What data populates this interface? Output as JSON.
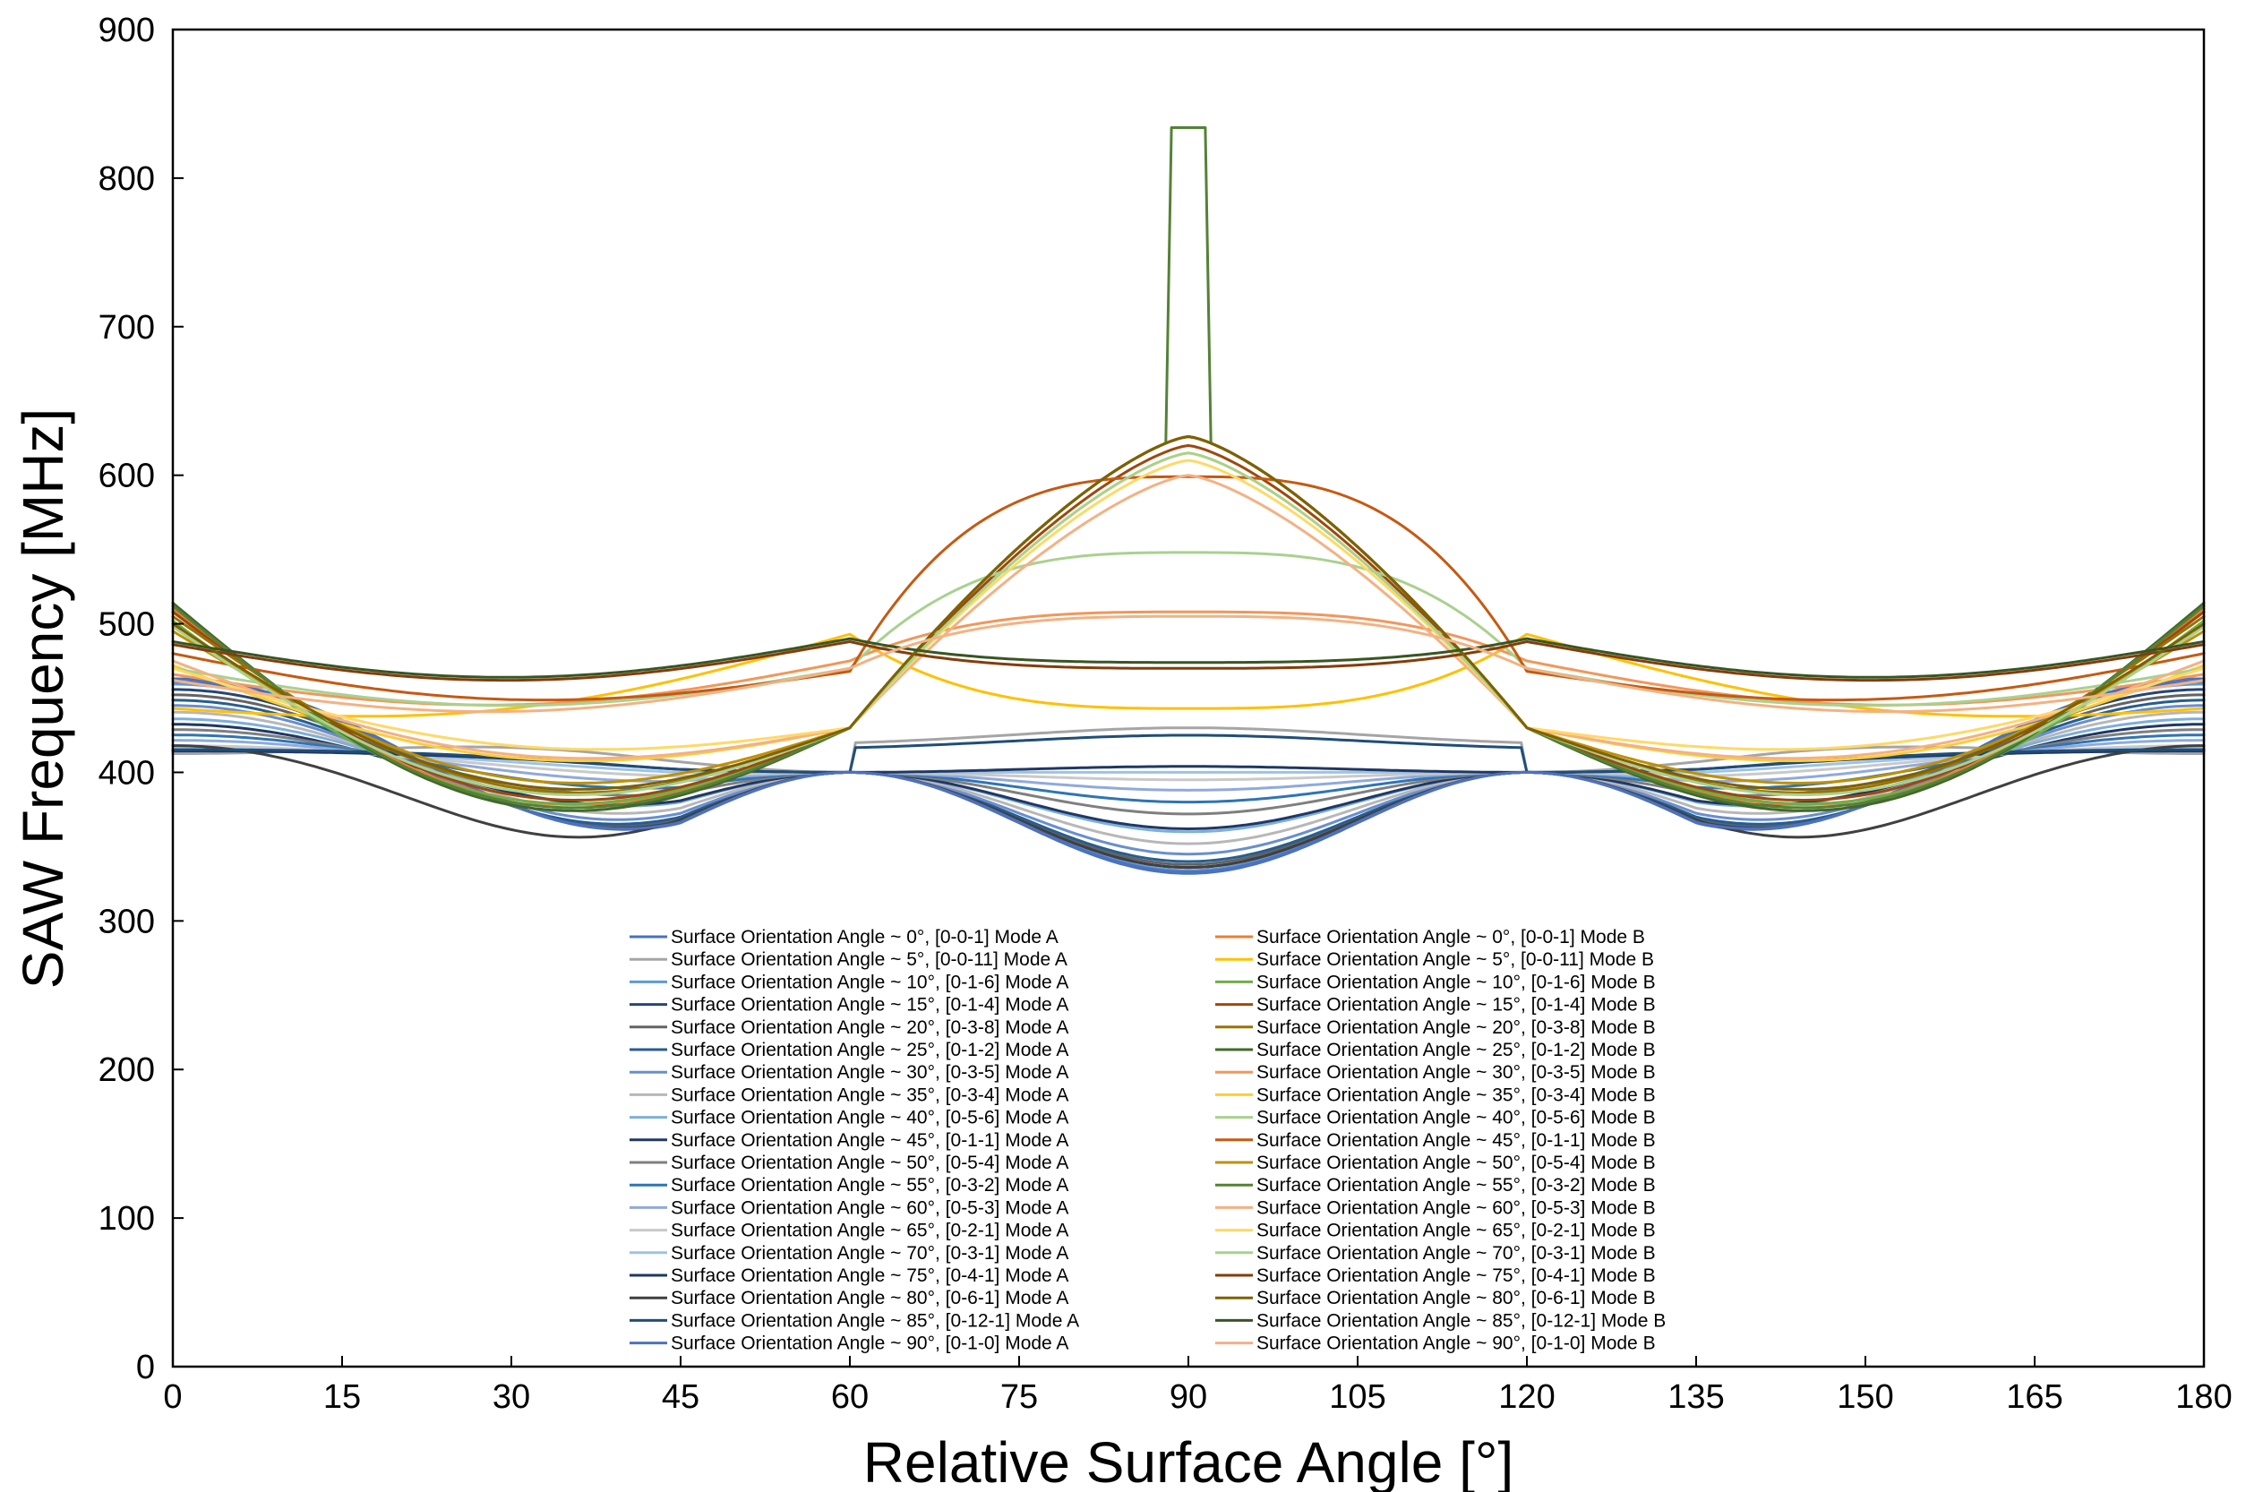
{
  "chart_data": {
    "type": "line",
    "title": "",
    "xlabel": "Relative Surface Angle [°]",
    "ylabel": "SAW Frequency [MHz]",
    "xlim": [
      0,
      180
    ],
    "ylim": [
      0,
      900
    ],
    "xticks": [
      "0",
      "15",
      "30",
      "45",
      "60",
      "75",
      "90",
      "105",
      "120",
      "135",
      "150",
      "165",
      "180"
    ],
    "yticks": [
      "0",
      "100",
      "200",
      "300",
      "400",
      "500",
      "600",
      "700",
      "800",
      "900"
    ],
    "grid": false,
    "legend_position": "lower-center, two columns",
    "series": [
      {
        "name": "Surface Orientation Angle ~ 0°, [0-0-1] Mode A",
        "mode": "A",
        "color": "#4472c4",
        "low": 332,
        "high": 470,
        "node": 400,
        "shoulder": 0.55
      },
      {
        "name": "Surface Orientation Angle ~ 5°, [0-0-11] Mode A",
        "mode": "A",
        "color": "#a5a5a5",
        "low": 414,
        "high": 414,
        "node": 400,
        "shoulder": 0.4,
        "mid": 430
      },
      {
        "name": "Surface Orientation Angle ~ 10°, [0-1-6] Mode A",
        "mode": "A",
        "color": "#5b9bd5",
        "low": 334,
        "high": 466,
        "node": 400,
        "shoulder": 0.55
      },
      {
        "name": "Surface Orientation Angle ~ 15°, [0-1-4] Mode A",
        "mode": "A",
        "color": "#264478",
        "low": 336,
        "high": 462,
        "node": 400,
        "shoulder": 0.55
      },
      {
        "name": "Surface Orientation Angle ~ 20°, [0-3-8] Mode A",
        "mode": "A",
        "color": "#636363",
        "low": 338,
        "high": 458,
        "node": 400,
        "shoulder": 0.55
      },
      {
        "name": "Surface Orientation Angle ~ 25°, [0-1-2] Mode A",
        "mode": "A",
        "color": "#255e91",
        "low": 340,
        "high": 454,
        "node": 400,
        "shoulder": 0.55
      },
      {
        "name": "Surface Orientation Angle ~ 30°, [0-3-5] Mode A",
        "mode": "A",
        "color": "#698ed0",
        "low": 345,
        "high": 450,
        "node": 400,
        "shoulder": 0.55
      },
      {
        "name": "Surface Orientation Angle ~ 35°, [0-3-4] Mode A",
        "mode": "A",
        "color": "#b7b7b7",
        "low": 352,
        "high": 445,
        "node": 400,
        "shoulder": 0.55
      },
      {
        "name": "Surface Orientation Angle ~ 40°, [0-5-6] Mode A",
        "mode": "A",
        "color": "#7cafdd",
        "low": 360,
        "high": 440,
        "node": 400,
        "shoulder": 0.55
      },
      {
        "name": "Surface Orientation Angle ~ 45°, [0-1-1] Mode A",
        "mode": "A",
        "color": "#203864",
        "low": 362,
        "high": 436,
        "node": 400,
        "shoulder": 0.55
      },
      {
        "name": "Surface Orientation Angle ~ 50°, [0-5-4] Mode A",
        "mode": "A",
        "color": "#7f7f7f",
        "low": 372,
        "high": 432,
        "node": 400,
        "shoulder": 0.55
      },
      {
        "name": "Surface Orientation Angle ~ 55°, [0-3-2] Mode A",
        "mode": "A",
        "color": "#2e75b6",
        "low": 380,
        "high": 428,
        "node": 400,
        "shoulder": 0.55
      },
      {
        "name": "Surface Orientation Angle ~ 60°, [0-5-3] Mode A",
        "mode": "A",
        "color": "#8faadc",
        "low": 388,
        "high": 424,
        "node": 400,
        "shoulder": 0.55
      },
      {
        "name": "Surface Orientation Angle ~ 65°, [0-2-1] Mode A",
        "mode": "A",
        "color": "#c9c9c9",
        "low": 395,
        "high": 420,
        "node": 400,
        "shoulder": 0.55
      },
      {
        "name": "Surface Orientation Angle ~ 70°, [0-3-1] Mode A",
        "mode": "A",
        "color": "#9dc3e6",
        "low": 400,
        "high": 418,
        "node": 400,
        "shoulder": 0.55
      },
      {
        "name": "Surface Orientation Angle ~ 75°, [0-4-1] Mode A",
        "mode": "A",
        "color": "#1f3864",
        "low": 404,
        "high": 416,
        "node": 400,
        "shoulder": 0.55
      },
      {
        "name": "Surface Orientation Angle ~ 80°, [0-6-1] Mode A",
        "mode": "A",
        "color": "#404040",
        "low": 336,
        "high": 420,
        "node": 400,
        "shoulder": 0.55
      },
      {
        "name": "Surface Orientation Angle ~ 85°, [0-12-1] Mode A",
        "mode": "A",
        "color": "#1f4e79",
        "low": 404,
        "high": 417,
        "node": 400,
        "shoulder": 0.4,
        "mid": 425
      },
      {
        "name": "Surface Orientation Angle ~ 90°, [0-1-0] Mode A",
        "mode": "A",
        "color": "#4f71be",
        "low": 333,
        "high": 468,
        "node": 400,
        "shoulder": 0.55
      },
      {
        "name": "Surface Orientation Angle ~ 0°, [0-0-1] Mode B",
        "mode": "B",
        "color": "#ed7d31",
        "peak": 626,
        "edge": 510,
        "valley": 382,
        "ridge": 486,
        "shape": "peak"
      },
      {
        "name": "Surface Orientation Angle ~ 5°, [0-0-11] Mode B",
        "mode": "B",
        "color": "#ffc000",
        "peak": 443,
        "edge": 443,
        "valley": 470,
        "ridge": 493,
        "shape": "plateau"
      },
      {
        "name": "Surface Orientation Angle ~ 10°, [0-1-6] Mode B",
        "mode": "B",
        "color": "#70ad47",
        "peak": 626,
        "edge": 502,
        "valley": 382,
        "ridge": 486,
        "shape": "peak"
      },
      {
        "name": "Surface Orientation Angle ~ 15°, [0-1-4] Mode B",
        "mode": "B",
        "color": "#9e480e",
        "peak": 620,
        "edge": 508,
        "valley": 385,
        "ridge": 480,
        "shape": "peak"
      },
      {
        "name": "Surface Orientation Angle ~ 20°, [0-3-8] Mode B",
        "mode": "B",
        "color": "#997300",
        "peak": 626,
        "edge": 505,
        "valley": 390,
        "ridge": 476,
        "shape": "peak"
      },
      {
        "name": "Surface Orientation Angle ~ 25°, [0-1-2] Mode B",
        "mode": "B",
        "color": "#43682b",
        "peak": 626,
        "edge": 514,
        "valley": 378,
        "ridge": 488,
        "shape": "peak"
      },
      {
        "name": "Surface Orientation Angle ~ 30°, [0-3-5] Mode B",
        "mode": "B",
        "color": "#f1975a",
        "peak": 508,
        "edge": 466,
        "valley": 436,
        "ridge": 475,
        "shape": "plateau"
      },
      {
        "name": "Surface Orientation Angle ~ 35°, [0-3-4] Mode B",
        "mode": "B",
        "color": "#ffcd33",
        "peak": 615,
        "edge": 472,
        "valley": 410,
        "ridge": 470,
        "shape": "peak"
      },
      {
        "name": "Surface Orientation Angle ~ 40°, [0-5-6] Mode B",
        "mode": "B",
        "color": "#a9d18e",
        "peak": 548,
        "edge": 470,
        "valley": 425,
        "ridge": 470,
        "shape": "plateau"
      },
      {
        "name": "Surface Orientation Angle ~ 45°, [0-1-1] Mode B",
        "mode": "B",
        "color": "#c55a11",
        "peak": 599,
        "edge": 480,
        "valley": 400,
        "ridge": 468,
        "shape": "plateau"
      },
      {
        "name": "Surface Orientation Angle ~ 50°, [0-5-4] Mode B",
        "mode": "B",
        "color": "#bf9000",
        "peak": 626,
        "edge": 495,
        "valley": 396,
        "ridge": 472,
        "shape": "peak"
      },
      {
        "name": "Surface Orientation Angle ~ 55°, [0-3-2] Mode B",
        "mode": "B",
        "color": "#548235",
        "peak": 834,
        "edge": 512,
        "valley": 380,
        "ridge": 484,
        "shape": "spike"
      },
      {
        "name": "Surface Orientation Angle ~ 60°, [0-5-3] Mode B",
        "mode": "B",
        "color": "#f4b183",
        "peak": 600,
        "edge": 475,
        "valley": 412,
        "ridge": 462,
        "shape": "peak"
      },
      {
        "name": "Surface Orientation Angle ~ 65°, [0-2-1] Mode B",
        "mode": "B",
        "color": "#ffd966",
        "peak": 610,
        "edge": 470,
        "valley": 418,
        "ridge": 458,
        "shape": "peak"
      },
      {
        "name": "Surface Orientation Angle ~ 70°, [0-3-1] Mode B",
        "mode": "B",
        "color": "#a9d18e",
        "peak": 615,
        "edge": 498,
        "valley": 388,
        "ridge": 470,
        "shape": "peak"
      },
      {
        "name": "Surface Orientation Angle ~ 75°, [0-4-1] Mode B",
        "mode": "B",
        "color": "#843c0c",
        "peak": 470,
        "edge": 486,
        "valley": 450,
        "ridge": 488,
        "shape": "plateau"
      },
      {
        "name": "Surface Orientation Angle ~ 80°, [0-6-1] Mode B",
        "mode": "B",
        "color": "#7f6000",
        "peak": 626,
        "edge": 500,
        "valley": 392,
        "ridge": 476,
        "shape": "peak"
      },
      {
        "name": "Surface Orientation Angle ~ 85°, [0-12-1] Mode B",
        "mode": "B",
        "color": "#375623",
        "peak": 474,
        "edge": 488,
        "valley": 452,
        "ridge": 490,
        "shape": "plateau"
      },
      {
        "name": "Surface Orientation Angle ~ 90°, [0-1-0] Mode B",
        "mode": "B",
        "color": "#f4b183",
        "peak": 505,
        "edge": 462,
        "valley": 440,
        "ridge": 470,
        "shape": "plateau"
      }
    ]
  }
}
